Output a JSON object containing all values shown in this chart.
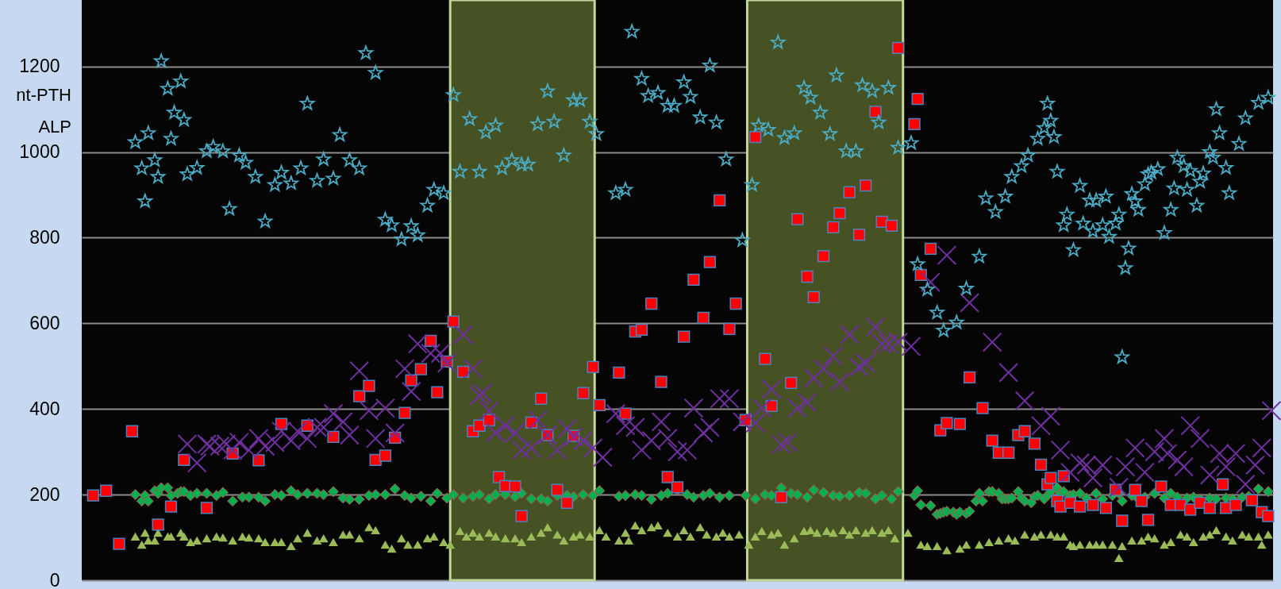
{
  "chart_data": {
    "type": "scatter",
    "ylim": [
      0,
      1355
    ],
    "yticks": [
      0,
      200,
      400,
      600,
      800,
      1000,
      1200
    ],
    "grid": "y",
    "tick_labels": "y",
    "annotations": [
      "nt-PTH",
      "ALP"
    ],
    "categories": [
      null,
      null,
      null,
      null,
      null,
      null,
      null,
      null,
      null,
      null,
      null,
      null,
      null,
      null,
      null,
      null,
      null,
      null,
      null,
      null,
      null,
      null,
      null,
      null,
      null,
      null,
      null,
      null,
      null,
      null,
      null,
      null,
      null,
      null,
      null,
      null,
      null,
      null,
      null,
      null,
      null,
      null,
      null,
      null,
      null,
      null,
      null,
      null,
      null,
      null,
      null,
      null,
      null,
      null,
      null,
      null,
      null,
      null,
      null,
      null,
      null,
      null,
      null,
      null,
      null,
      null,
      null,
      null,
      null,
      null,
      null,
      null,
      null,
      null,
      null,
      null,
      null,
      null,
      null,
      null,
      null,
      null,
      null,
      null,
      null,
      null,
      null,
      null,
      null,
      null,
      null,
      null,
      null,
      null,
      null,
      null,
      null,
      null,
      null,
      null,
      null,
      null,
      null,
      null,
      null,
      null,
      null,
      null,
      null,
      null,
      null,
      null,
      null,
      null,
      null,
      null,
      null,
      null,
      null,
      null,
      null,
      null,
      null,
      null,
      null,
      null,
      null,
      null,
      null,
      null,
      null,
      null,
      null,
      null,
      null,
      null,
      null,
      null,
      null,
      null,
      null,
      null,
      null,
      null,
      null,
      null,
      null,
      null,
      null,
      null,
      null,
      null,
      null,
      null,
      null,
      null,
      null,
      null,
      null,
      null,
      null,
      null,
      null,
      null,
      null,
      null,
      null,
      null,
      null,
      null,
      null,
      null,
      null,
      null,
      null,
      null,
      null,
      null,
      null,
      null,
      null,
      null,
      null,
      null,
      null,
      null,
      null,
      null,
      null,
      null,
      null,
      null,
      null,
      null,
      null,
      null,
      null,
      null,
      null,
      null,
      null,
      null,
      null,
      null,
      null,
      null,
      null,
      null,
      null,
      null,
      null,
      null,
      null,
      null,
      null,
      null,
      null,
      null,
      null,
      null,
      null,
      null,
      null,
      null,
      null,
      null,
      null,
      null,
      null,
      null,
      null,
      null,
      null,
      null,
      null,
      null,
      null,
      null,
      null,
      null,
      null,
      null,
      null,
      null,
      null,
      null,
      null,
      null,
      null,
      null,
      null,
      null,
      null,
      null,
      null,
      null,
      null,
      null,
      null,
      null,
      null,
      null,
      null,
      null,
      null,
      null,
      null,
      null,
      null,
      null,
      null,
      null,
      null,
      null,
      null,
      null,
      null,
      null,
      null,
      null,
      null,
      null,
      null,
      null,
      null,
      null,
      null,
      null,
      null,
      null,
      null,
      null,
      null,
      null,
      null,
      null,
      null,
      null,
      null,
      null,
      null,
      null,
      null,
      null,
      null,
      null,
      null,
      null,
      null,
      null,
      null,
      null,
      null,
      null,
      null,
      null,
      null,
      null,
      null,
      null,
      null,
      null,
      null,
      null,
      null,
      null,
      null,
      null,
      null,
      null,
      null,
      null,
      null,
      null,
      null,
      null,
      null,
      null,
      null,
      null,
      null,
      null,
      null,
      null,
      null,
      null,
      null,
      null,
      null,
      null,
      null,
      null,
      null,
      null,
      null,
      null,
      null,
      null,
      null,
      null,
      null,
      null,
      null,
      null,
      null,
      null,
      null
    ],
    "series": [
      {
        "marker": "triangle",
        "color": "#9bbb59",
        "values": [
          null,
          null,
          null,
          null,
          null,
          null,
          null,
          null,
          null,
          null,
          null,
          null,
          null,
          null,
          null,
          null,
          102,
          null,
          83,
          111,
          93,
          null,
          93,
          111,
          null,
          null,
          102,
          102,
          null,
          null,
          111,
          102,
          null,
          89,
          null,
          93,
          null,
          null,
          98,
          null,
          null,
          102,
          null,
          100,
          null,
          null,
          93,
          null,
          null,
          102,
          null,
          100,
          null,
          null,
          98,
          null,
          89,
          null,
          null,
          89,
          null,
          89,
          null,
          null,
          80,
          null,
          98,
          null,
          null,
          111,
          null,
          null,
          93,
          null,
          98,
          null,
          null,
          89,
          null,
          null,
          107,
          null,
          107,
          null,
          null,
          98,
          null,
          null,
          124,
          null,
          117,
          null,
          null,
          83,
          null,
          74,
          null,
          null,
          98,
          null,
          83,
          null,
          null,
          83,
          null,
          null,
          98,
          null,
          102,
          null,
          null,
          89,
          null,
          83,
          null,
          null,
          115,
          null,
          102,
          null,
          111,
          null,
          102,
          null,
          null,
          111,
          null,
          102,
          null,
          null,
          98,
          null,
          null,
          98,
          null,
          89,
          null,
          null,
          102,
          null,
          null,
          111,
          null,
          124,
          null,
          null,
          107,
          null,
          93,
          null,
          null,
          102,
          null,
          107,
          null,
          null,
          102,
          null,
          null,
          117,
          null,
          102,
          null,
          null,
          null,
          93,
          null,
          111,
          93,
          null,
          128,
          null,
          117,
          null,
          null,
          124,
          null,
          128,
          null,
          null,
          111,
          null,
          null,
          102,
          null,
          117,
          null,
          102,
          null,
          null,
          124,
          null,
          107,
          null,
          null,
          102,
          null,
          111,
          null,
          102,
          null,
          null,
          107,
          null,
          null,
          83,
          null,
          102,
          null,
          115,
          null,
          null,
          107,
          null,
          111,
          null,
          83,
          null,
          null,
          98,
          null,
          null,
          115,
          null,
          117,
          null,
          111,
          null,
          null,
          115,
          null,
          111,
          null,
          null,
          117,
          null,
          107,
          null,
          117,
          null,
          null,
          111,
          null,
          117,
          null,
          null,
          111,
          null,
          117,
          null,
          98,
          null,
          null,
          null,
          111,
          null,
          null,
          null,
          83,
          null,
          80,
          null,
          null,
          80,
          null,
          null,
          70,
          null,
          null,
          null,
          74,
          null,
          83,
          null,
          null,
          null,
          83,
          null,
          null,
          89,
          null,
          null,
          93,
          null,
          null,
          98,
          null,
          93,
          null,
          null,
          107,
          null,
          null,
          102,
          null,
          107,
          null,
          null,
          107,
          null,
          102,
          null,
          102,
          null,
          83,
          80,
          null,
          83,
          null,
          null,
          83,
          null,
          83,
          null,
          83,
          null,
          null,
          83,
          null,
          52,
          80,
          null,
          null,
          93,
          null,
          null,
          93,
          null,
          102,
          null,
          98,
          null,
          null,
          83,
          null,
          89,
          null,
          null,
          107,
          null,
          102,
          null,
          89,
          null,
          null,
          102,
          null,
          107,
          null,
          117,
          null,
          null,
          102,
          null,
          93,
          null,
          null,
          107,
          null,
          102,
          null,
          null,
          102,
          83,
          null,
          107,
          null
        ]
      },
      {
        "marker": "diamond",
        "color": "#00b050",
        "values": [
          null,
          null,
          null,
          null,
          null,
          null,
          null,
          null,
          null,
          null,
          null,
          null,
          null,
          null,
          null,
          null,
          200,
          null,
          185,
          198,
          185,
          null,
          209,
          203,
          216,
          null,
          216,
          198,
          null,
          203,
          207,
          207,
          null,
          198,
          null,
          203,
          null,
          null,
          203,
          null,
          null,
          198,
          null,
          205,
          null,
          null,
          185,
          null,
          null,
          194,
          null,
          194,
          null,
          null,
          194,
          null,
          185,
          null,
          null,
          200,
          null,
          198,
          null,
          null,
          209,
          null,
          200,
          null,
          null,
          203,
          null,
          null,
          203,
          null,
          200,
          null,
          null,
          207,
          null,
          null,
          192,
          null,
          189,
          null,
          null,
          189,
          null,
          null,
          198,
          null,
          200,
          null,
          null,
          200,
          null,
          null,
          213,
          null,
          null,
          198,
          null,
          192,
          null,
          null,
          196,
          null,
          null,
          185,
          null,
          203,
          null,
          null,
          192,
          null,
          200,
          null,
          null,
          192,
          null,
          null,
          196,
          null,
          200,
          null,
          null,
          190,
          null,
          200,
          null,
          null,
          200,
          null,
          null,
          195,
          null,
          203,
          null,
          null,
          190,
          null,
          null,
          190,
          null,
          185,
          null,
          null,
          198,
          null,
          null,
          198,
          null,
          195,
          null,
          null,
          200,
          null,
          null,
          198,
          null,
          209,
          null,
          null,
          null,
          null,
          null,
          196,
          null,
          198,
          null,
          null,
          200,
          null,
          198,
          null,
          null,
          189,
          null,
          null,
          198,
          null,
          203,
          null,
          null,
          211,
          null,
          null,
          200,
          null,
          194,
          null,
          null,
          198,
          null,
          203,
          null,
          null,
          194,
          null,
          null,
          198,
          null,
          null,
          null,
          null,
          198,
          null,
          null,
          190,
          null,
          null,
          200,
          null,
          198,
          null,
          null,
          216,
          null,
          null,
          203,
          null,
          200,
          null,
          null,
          194,
          null,
          211,
          null,
          null,
          205,
          null,
          null,
          198,
          null,
          196,
          null,
          null,
          198,
          null,
          null,
          205,
          null,
          203,
          null,
          null,
          190,
          null,
          198,
          null,
          null,
          190,
          null,
          207,
          null,
          null,
          null,
          null,
          198,
          209,
          176,
          null,
          null,
          174,
          null,
          154,
          156,
          159,
          161,
          null,
          159,
          154,
          159,
          null,
          156,
          161,
          null,
          185,
          203,
          185,
          null,
          207,
          207,
          null,
          203,
          190,
          190,
          190,
          192,
          null,
          207,
          192,
          185,
          null,
          181,
          195,
          198,
          null,
          190,
          198,
          207,
          null,
          216,
          203,
          207,
          null,
          198,
          200,
          null,
          203,
          null,
          192,
          null,
          null,
          203,
          null,
          190,
          null,
          null,
          198,
          null,
          203,
          185,
          null,
          null,
          198,
          null,
          190,
          null,
          194,
          null,
          null,
          203,
          null,
          null,
          192,
          null,
          203,
          null,
          194,
          null,
          null,
          192,
          null,
          194,
          null,
          190,
          null,
          null,
          192,
          null,
          190,
          null,
          null,
          192,
          null,
          190,
          null,
          null,
          194,
          null,
          196,
          null,
          null,
          213,
          null,
          null,
          207,
          null
        ]
      },
      {
        "marker": "square",
        "color": "#ff0000",
        "values": [
          null,
          null,
          null,
          198,
          null,
          null,
          null,
          209,
          null,
          null,
          null,
          85,
          null,
          null,
          null,
          348,
          null,
          null,
          null,
          null,
          null,
          null,
          null,
          130,
          null,
          null,
          null,
          172,
          null,
          null,
          null,
          281,
          null,
          null,
          null,
          null,
          null,
          null,
          169,
          null,
          null,
          null,
          null,
          null,
          null,
          null,
          296,
          null,
          null,
          null,
          null,
          null,
          null,
          null,
          280,
          null,
          null,
          null,
          null,
          null,
          null,
          365,
          null,
          null,
          null,
          null,
          null,
          null,
          null,
          361,
          null,
          null,
          null,
          null,
          null,
          null,
          null,
          335,
          null,
          null,
          null,
          null,
          null,
          null,
          null,
          430,
          null,
          null,
          454,
          null,
          281,
          null,
          null,
          291,
          null,
          null,
          333,
          null,
          null,
          391,
          null,
          467,
          null,
          null,
          493,
          null,
          null,
          559,
          null,
          439,
          null,
          null,
          511,
          null,
          604,
          null,
          null,
          487,
          null,
          null,
          348,
          null,
          361,
          null,
          null,
          374,
          null,
          null,
          241,
          null,
          220,
          null,
          null,
          219,
          null,
          150,
          null,
          null,
          368,
          null,
          null,
          424,
          null,
          339,
          null,
          null,
          211,
          null,
          null,
          181,
          null,
          337,
          null,
          null,
          437,
          null,
          null,
          498,
          null,
          409,
          null,
          null,
          null,
          null,
          null,
          485,
          null,
          389,
          null,
          null,
          581,
          null,
          585,
          null,
          null,
          646,
          null,
          null,
          463,
          null,
          241,
          null,
          null,
          217,
          null,
          569,
          null,
          null,
          702,
          null,
          null,
          613,
          null,
          743,
          null,
          null,
          887,
          null,
          null,
          587,
          null,
          646,
          null,
          null,
          374,
          null,
          null,
          1035,
          null,
          null,
          517,
          null,
          407,
          null,
          null,
          194,
          null,
          null,
          461,
          null,
          843,
          null,
          null,
          709,
          null,
          661,
          null,
          null,
          757,
          null,
          null,
          824,
          null,
          857,
          null,
          null,
          906,
          null,
          null,
          807,
          null,
          922,
          null,
          null,
          1094,
          null,
          837,
          null,
          null,
          828,
          null,
          1243,
          null,
          null,
          null,
          null,
          1065,
          1124,
          713,
          null,
          null,
          774,
          null,
          null,
          350,
          null,
          367,
          null,
          null,
          null,
          365,
          null,
          null,
          474,
          null,
          null,
          null,
          402,
          null,
          null,
          326,
          null,
          298,
          null,
          null,
          298,
          null,
          null,
          339,
          null,
          348,
          null,
          null,
          319,
          null,
          270,
          null,
          224,
          239,
          null,
          185,
          172,
          243,
          null,
          181,
          null,
          null,
          172,
          null,
          null,
          null,
          176,
          null,
          null,
          null,
          169,
          null,
          null,
          211,
          null,
          139,
          null,
          null,
          null,
          211,
          null,
          185,
          null,
          141,
          null,
          null,
          null,
          219,
          null,
          null,
          176,
          null,
          null,
          176,
          null,
          null,
          165,
          null,
          null,
          181,
          null,
          null,
          169,
          null,
          null,
          null,
          224,
          169,
          null,
          null,
          176,
          null,
          null,
          null,
          null,
          187,
          null,
          null,
          159,
          null,
          150,
          null
        ]
      },
      {
        "marker": "cross",
        "color": "#7030a0",
        "values": [
          null,
          null,
          null,
          null,
          null,
          null,
          null,
          null,
          null,
          null,
          null,
          null,
          null,
          null,
          null,
          null,
          null,
          null,
          null,
          null,
          null,
          null,
          null,
          null,
          null,
          null,
          null,
          null,
          null,
          null,
          null,
          null,
          318,
          null,
          null,
          274,
          null,
          null,
          318,
          313,
          null,
          null,
          313,
          null,
          318,
          null,
          304,
          null,
          322,
          null,
          null,
          304,
          null,
          null,
          331,
          null,
          313,
          null,
          null,
          322,
          null,
          348,
          null,
          null,
          326,
          null,
          348,
          null,
          null,
          331,
          null,
          null,
          357,
          null,
          357,
          null,
          null,
          389,
          null,
          null,
          370,
          null,
          339,
          null,
          null,
          489,
          null,
          null,
          396,
          null,
          331,
          null,
          null,
          402,
          null,
          null,
          344,
          null,
          null,
          494,
          null,
          441,
          null,
          552,
          null,
          null,
          null,
          530,
          null,
          null,
          530,
          null,
          507,
          null,
          null,
          null,
          null,
          574,
          null,
          null,
          494,
          null,
          431,
          437,
          null,
          396,
          null,
          344,
          null,
          null,
          361,
          null,
          null,
          344,
          null,
          304,
          null,
          null,
          309,
          null,
          374,
          null,
          null,
          339,
          null,
          null,
          304,
          null,
          null,
          354,
          null,
          335,
          null,
          null,
          326,
          null,
          null,
          309,
          null,
          null,
          287,
          null,
          null,
          null,
          389,
          null,
          null,
          361,
          null,
          null,
          357,
          null,
          304,
          null,
          null,
          326,
          null,
          null,
          370,
          null,
          331,
          null,
          null,
          300,
          null,
          null,
          304,
          null,
          402,
          null,
          null,
          344,
          null,
          357,
          null,
          null,
          424,
          null,
          null,
          424,
          null,
          null,
          null,
          370,
          null,
          null,
          null,
          367,
          null,
          402,
          null,
          null,
          446,
          null,
          null,
          317,
          null,
          322,
          null,
          null,
          402,
          null,
          null,
          415,
          null,
          472,
          null,
          null,
          494,
          null,
          null,
          524,
          null,
          463,
          null,
          null,
          574,
          null,
          null,
          498,
          null,
          507,
          null,
          null,
          591,
          null,
          552,
          null,
          552,
          null,
          null,
          556,
          null,
          null,
          null,
          546,
          null,
          null,
          null,
          null,
          null,
          696,
          null,
          null,
          null,
          null,
          759,
          null,
          null,
          null,
          null,
          null,
          null,
          648,
          null,
          null,
          null,
          null,
          null,
          null,
          556,
          null,
          null,
          null,
          null,
          485,
          null,
          null,
          null,
          null,
          419,
          null,
          null,
          null,
          null,
          361,
          null,
          null,
          383,
          null,
          null,
          304,
          null,
          null,
          252,
          null,
          null,
          274,
          null,
          269,
          null,
          239,
          null,
          null,
          269,
          null,
          null,
          null,
          null,
          217,
          null,
          265,
          null,
          null,
          309,
          null,
          null,
          252,
          null,
          null,
          300,
          null,
          null,
          331,
          296,
          null,
          null,
          281,
          null,
          265,
          null,
          361,
          null,
          null,
          331,
          null,
          null,
          246,
          null,
          null,
          296,
          null,
          265,
          null,
          null,
          296,
          null,
          null,
          224,
          null,
          null,
          269,
          null,
          309,
          null,
          null,
          396
        ]
      },
      {
        "marker": "star",
        "color": "#4bacc6",
        "values": [
          null,
          null,
          null,
          null,
          null,
          null,
          null,
          null,
          null,
          null,
          null,
          null,
          null,
          null,
          null,
          null,
          1023,
          null,
          962,
          885,
          1044,
          null,
          981,
          942,
          1212,
          null,
          1148,
          1031,
          1092,
          null,
          1165,
          1075,
          948,
          null,
          null,
          963,
          null,
          null,
          1002,
          null,
          1012,
          null,
          null,
          1002,
          null,
          867,
          null,
          null,
          992,
          null,
          975,
          null,
          null,
          942,
          null,
          null,
          838,
          null,
          null,
          923,
          null,
          952,
          null,
          null,
          927,
          null,
          null,
          962,
          null,
          1113,
          null,
          null,
          933,
          null,
          983,
          null,
          null,
          938,
          null,
          1040,
          null,
          null,
          981,
          null,
          null,
          962,
          null,
          1231,
          null,
          null,
          1185,
          null,
          null,
          842,
          null,
          829,
          null,
          null,
          796,
          null,
          null,
          827,
          null,
          806,
          null,
          null,
          875,
          null,
          912,
          null,
          null,
          904,
          null,
          null,
          1133,
          null,
          954,
          null,
          null,
          1077,
          null,
          null,
          954,
          null,
          1046,
          null,
          null,
          1062,
          null,
          962,
          null,
          null,
          981,
          null,
          null,
          971,
          null,
          971,
          null,
          null,
          1065,
          null,
          null,
          1142,
          null,
          1071,
          null,
          null,
          992,
          null,
          null,
          1121,
          null,
          1121,
          null,
          null,
          1071,
          null,
          1042,
          null,
          null,
          null,
          null,
          null,
          904,
          null,
          null,
          912,
          null,
          1281,
          null,
          null,
          1171,
          null,
          1131,
          null,
          null,
          1138,
          null,
          null,
          1108,
          null,
          1108,
          null,
          null,
          1163,
          null,
          1129,
          null,
          null,
          1081,
          null,
          null,
          1202,
          null,
          1069,
          null,
          null,
          983,
          null,
          null,
          null,
          null,
          794,
          null,
          null,
          923,
          null,
          1062,
          null,
          null,
          1052,
          null,
          null,
          1256,
          null,
          1033,
          null,
          null,
          1044,
          null,
          null,
          1150,
          null,
          1127,
          null,
          null,
          1092,
          null,
          null,
          1042,
          null,
          1179,
          null,
          null,
          1002,
          null,
          null,
          1002,
          null,
          1156,
          null,
          null,
          1142,
          null,
          1069,
          null,
          null,
          1150,
          null,
          null,
          1010,
          null,
          null,
          null,
          1021,
          null,
          738,
          null,
          null,
          679,
          null,
          null,
          625,
          null,
          583,
          null,
          null,
          null,
          602,
          null,
          null,
          681,
          null,
          null,
          null,
          756,
          null,
          892,
          null,
          null,
          860,
          null,
          null,
          896,
          null,
          942,
          null,
          null,
          967,
          null,
          992,
          null,
          null,
          1031,
          null,
          1056,
          1113,
          1073,
          1035,
          954,
          null,
          829,
          854,
          null,
          771,
          null,
          921,
          833,
          null,
          887,
          815,
          887,
          null,
          829,
          896,
          802,
          null,
          833,
          854,
          521,
          729,
          775,
          902,
          885,
          865,
          null,
          925,
          948,
          952,
          null,
          960,
          null,
          811,
          null,
          865,
          915,
          987,
          null,
          967,
          912,
          956,
          null,
          875,
          931,
          950,
          null,
          1000,
          987,
          1100,
          1044,
          null,
          963,
          904,
          null,
          null,
          1019,
          null,
          1079,
          null,
          null,
          null,
          1115,
          null,
          null,
          1127,
          null
        ]
      }
    ]
  }
}
